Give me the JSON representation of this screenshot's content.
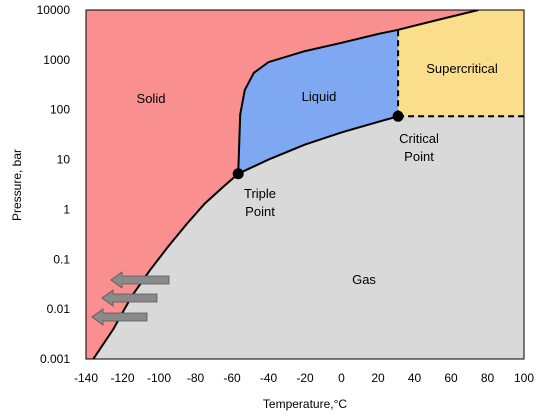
{
  "colors": {
    "solid": "#F98F8F",
    "liquid": "#7EA8F2",
    "supercritical": "#FBDE8C",
    "gas": "#D9D9D9",
    "arrow": "#8A8A8A"
  },
  "diagram": {
    "x_axis": {
      "title": "Temperature,°C",
      "range": [
        -140,
        100
      ],
      "ticks": [
        -140,
        -120,
        -100,
        -80,
        -60,
        -40,
        -20,
        0,
        20,
        40,
        60,
        80,
        100
      ],
      "tick_labels": [
        "-140",
        "-120",
        "-100",
        "-80",
        "-60",
        "-40",
        "-20",
        "0",
        "20",
        "40",
        "60",
        "80",
        "100"
      ]
    },
    "y_axis": {
      "title": "Pressure, bar",
      "scale": "log",
      "range": [
        0.001,
        10000
      ],
      "ticks": [
        0.001,
        0.01,
        0.1,
        1,
        10,
        100,
        1000,
        10000
      ],
      "tick_labels": [
        "0.001",
        "0.01",
        "0.1",
        "1",
        "10",
        "100",
        "1000",
        "10000"
      ]
    },
    "regions": {
      "solid": "Solid",
      "liquid": "Liquid",
      "supercritical": "Supercritical",
      "gas": "Gas"
    },
    "points": {
      "triple": {
        "label_line1": "Triple",
        "label_line2": "Point",
        "t": -56.6,
        "p": 5.2
      },
      "critical": {
        "label_line1": "Critical",
        "label_line2": "Point",
        "t": 31,
        "p": 73.8
      }
    },
    "sublimation_curve": [
      [
        -136,
        0.001
      ],
      [
        -125,
        0.004
      ],
      [
        -115,
        0.018
      ],
      [
        -105,
        0.06
      ],
      [
        -95,
        0.18
      ],
      [
        -85,
        0.5
      ],
      [
        -75,
        1.3
      ],
      [
        -65,
        2.8
      ],
      [
        -56.6,
        5.2
      ]
    ],
    "boiling_curve": [
      [
        -56.6,
        5.2
      ],
      [
        -40,
        10
      ],
      [
        -20,
        20
      ],
      [
        0,
        35
      ],
      [
        20,
        57
      ],
      [
        31,
        73.8
      ]
    ],
    "melting_curve": [
      [
        -56.6,
        5.2
      ],
      [
        -55.5,
        80
      ],
      [
        -53,
        250
      ],
      [
        -48,
        550
      ],
      [
        -40,
        900
      ],
      [
        -20,
        1500
      ],
      [
        0,
        2200
      ],
      [
        20,
        3300
      ],
      [
        31,
        4000
      ],
      [
        50,
        6000
      ],
      [
        75,
        10000
      ]
    ]
  }
}
